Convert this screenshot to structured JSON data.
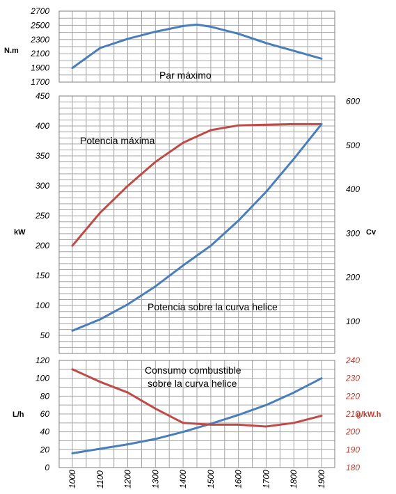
{
  "charts": {
    "colors": {
      "blue": "#4a7ebb",
      "red": "#be4b48",
      "grid": "#a6a6a6",
      "frame": "#7f7f7f",
      "red_text": "#c0392b"
    },
    "x_ticks": [
      "1000",
      "1100",
      "1200",
      "1300",
      "1400",
      "1500",
      "1600",
      "1700",
      "1800",
      "1900"
    ]
  },
  "chart_data": [
    {
      "type": "line",
      "id": "torque",
      "ylabel": "N.m",
      "annotation": "Par máximo",
      "ylim": [
        1700,
        2700
      ],
      "y_ticks": [
        "2700",
        "2500",
        "2300",
        "2100",
        "1900",
        "1700"
      ],
      "x": [
        1000,
        1100,
        1200,
        1300,
        1400,
        1450,
        1500,
        1600,
        1700,
        1800,
        1900
      ],
      "series": [
        {
          "color": "blue",
          "values": [
            1900,
            2180,
            2310,
            2410,
            2490,
            2510,
            2480,
            2380,
            2250,
            2140,
            2030
          ]
        }
      ],
      "grid": true
    },
    {
      "type": "line",
      "id": "power",
      "ylabel": "kW",
      "y2label": "Cv",
      "annotations": [
        "Potencia máxima",
        "Potencia sobre la curva helice"
      ],
      "ylim": [
        20,
        450
      ],
      "y_ticks": [
        "450",
        "400",
        "350",
        "300",
        "250",
        "200",
        "150",
        "100",
        "50"
      ],
      "y2lim": [
        27.2,
        611.8
      ],
      "y2_ticks": [
        "600",
        "500",
        "400",
        "300",
        "200",
        "100"
      ],
      "x": [
        1000,
        1100,
        1200,
        1300,
        1400,
        1500,
        1600,
        1700,
        1800,
        1900
      ],
      "series": [
        {
          "color": "red",
          "values": [
            200,
            255,
            300,
            340,
            372,
            393,
            401,
            402,
            403,
            403
          ]
        },
        {
          "color": "blue",
          "values": [
            58,
            77,
            102,
            132,
            167,
            200,
            242,
            290,
            345,
            403
          ]
        }
      ],
      "grid": true
    },
    {
      "type": "line",
      "id": "consumption",
      "ylabel": "L/h",
      "y2label": "g/kW.h",
      "annotation_line1": "Consumo combustible",
      "annotation_line2": "sobre la curva helice",
      "ylim": [
        0,
        120
      ],
      "y_ticks": [
        "120",
        "100",
        "80",
        "60",
        "40",
        "20",
        "0"
      ],
      "y2lim": [
        180,
        240
      ],
      "y2_ticks": [
        "240",
        "230",
        "220",
        "210",
        "200",
        "190",
        "180"
      ],
      "x": [
        1000,
        1100,
        1200,
        1300,
        1400,
        1500,
        1600,
        1700,
        1800,
        1900
      ],
      "series": [
        {
          "color": "blue",
          "axis": "left",
          "values": [
            16,
            21,
            26,
            32,
            40,
            49,
            59,
            70,
            84,
            100
          ]
        },
        {
          "color": "red",
          "axis": "right",
          "values": [
            235,
            228,
            222,
            213,
            205,
            204,
            204,
            203,
            205,
            209
          ]
        }
      ],
      "grid": true
    }
  ]
}
